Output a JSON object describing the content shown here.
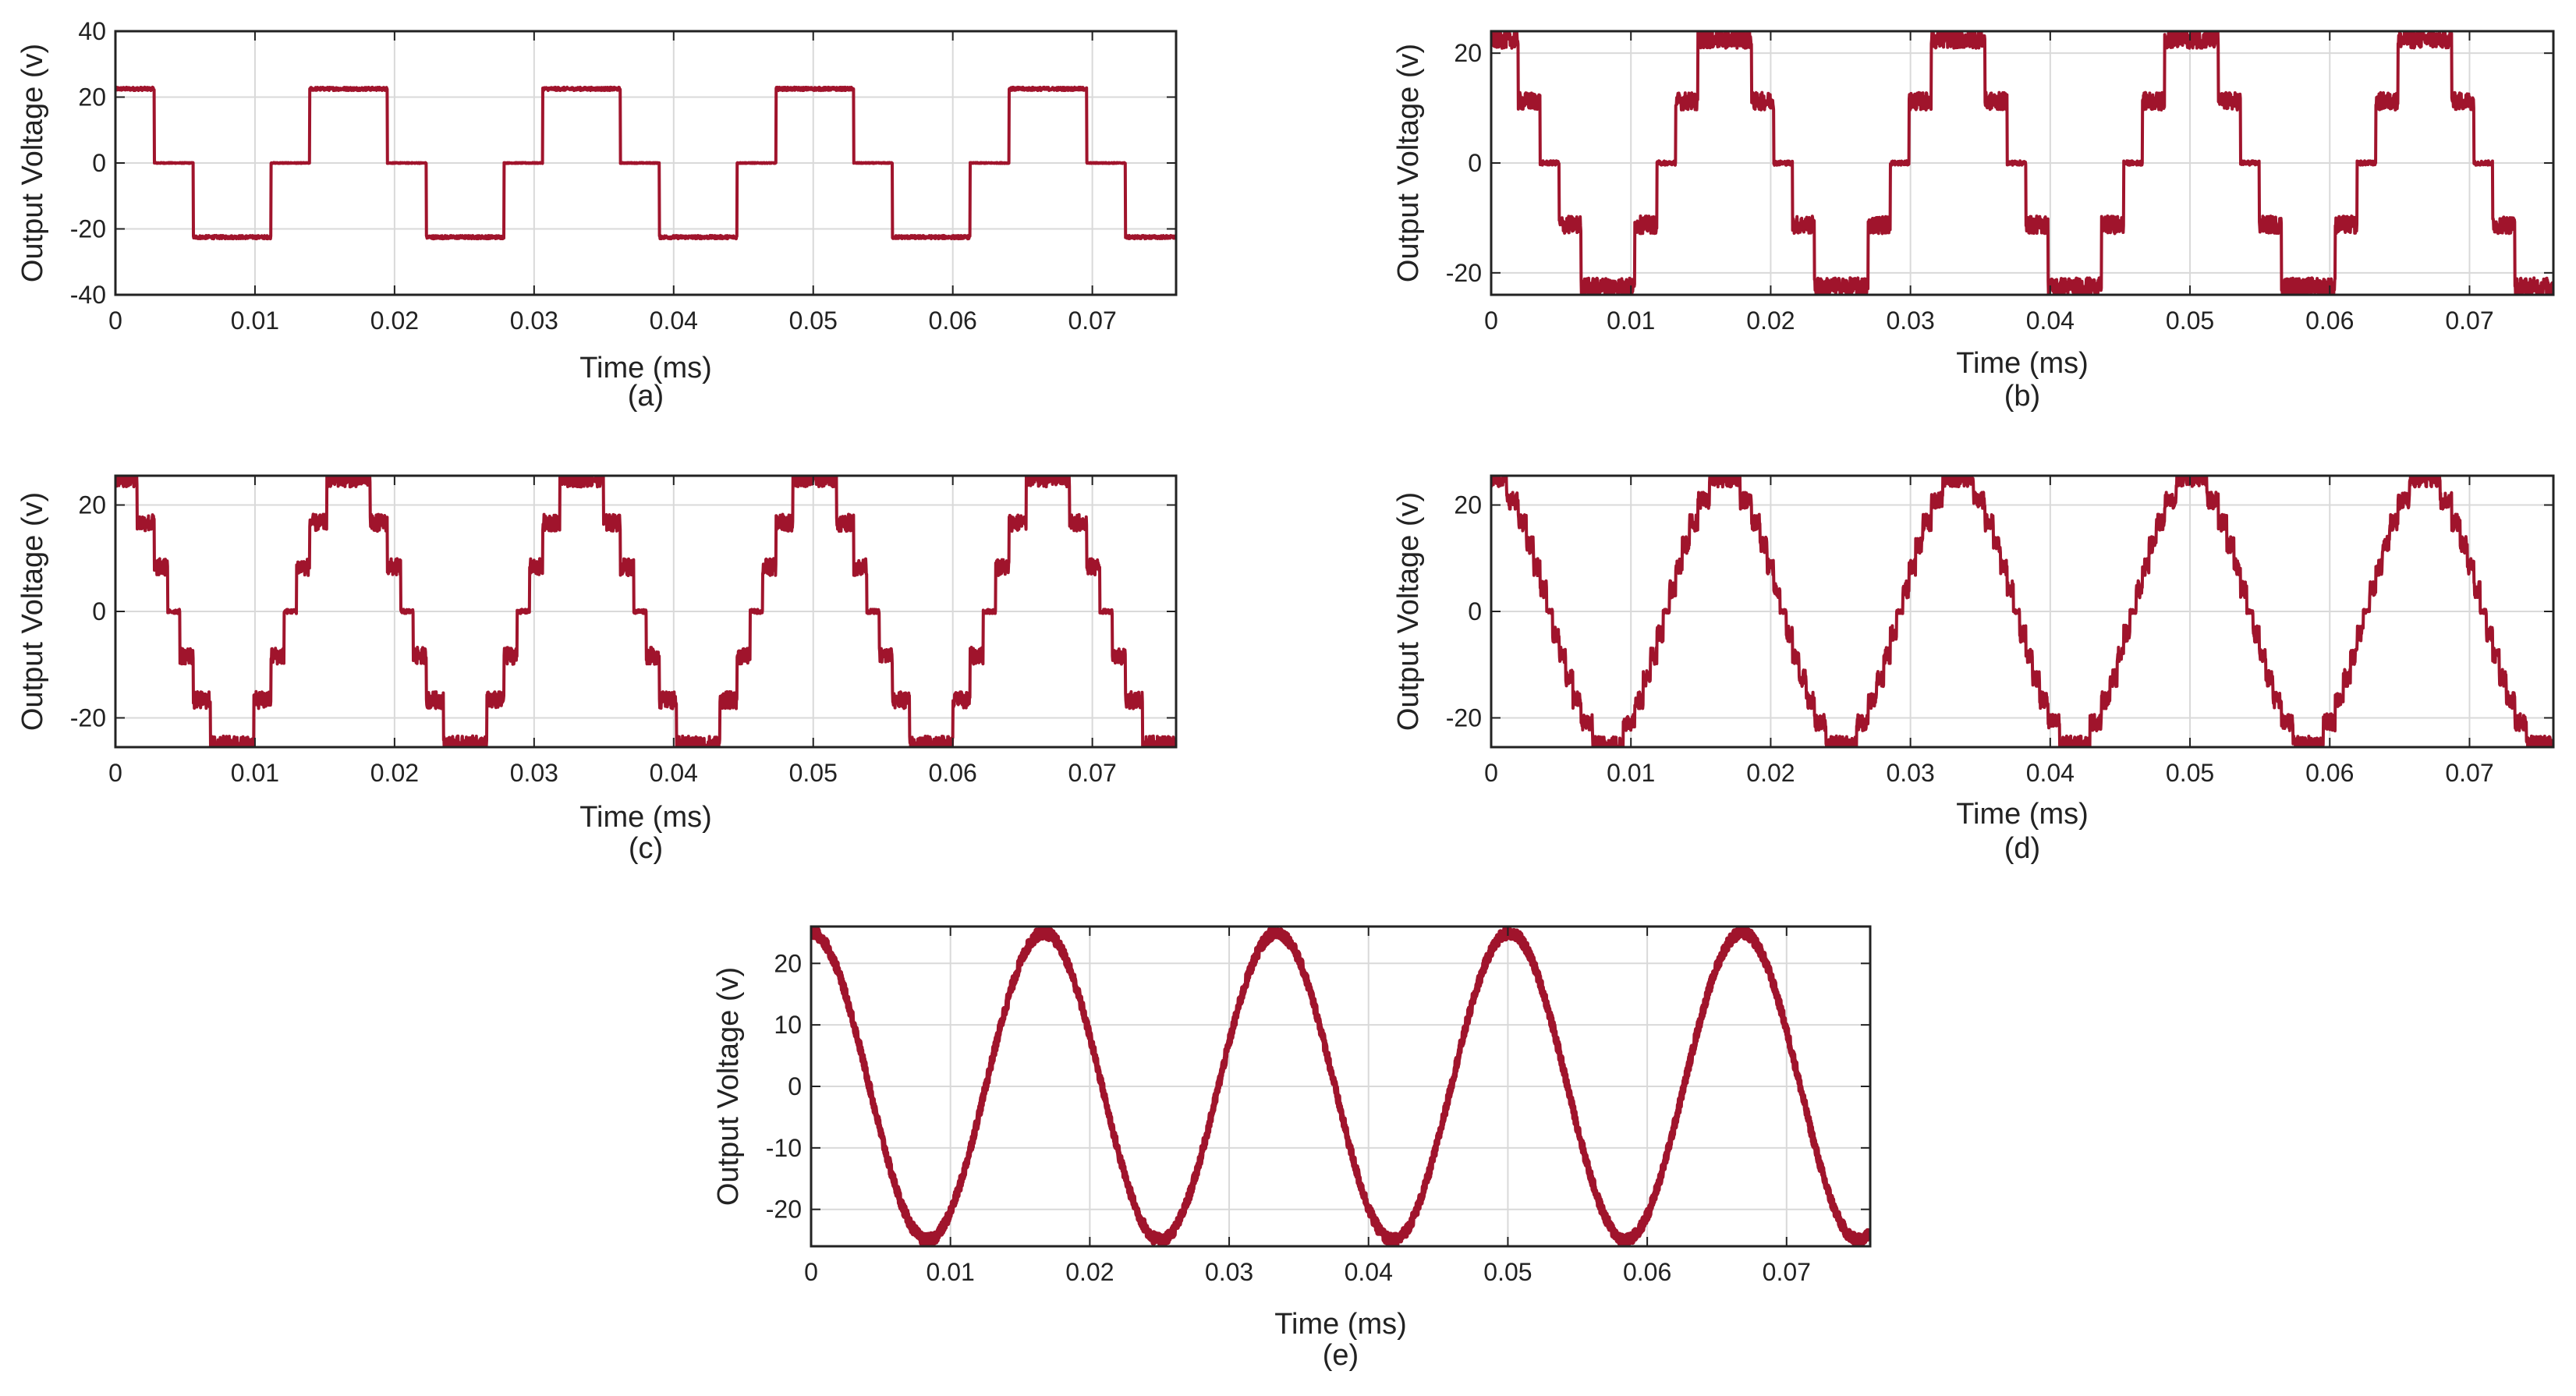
{
  "colors": {
    "trace": "#a0142c",
    "grid": "#d9d9d9",
    "frame": "#222222"
  },
  "chart_data": [
    {
      "type": "line",
      "caption": "(a)",
      "xlabel": "Time (ms)",
      "ylabel": "Output Voltage (v)",
      "xlim": [
        0,
        0.076
      ],
      "ylim": [
        -40,
        40
      ],
      "xticks": [
        0,
        0.01,
        0.02,
        0.03,
        0.04,
        0.05,
        0.06,
        0.07
      ],
      "xtick_labels": [
        "0",
        "0.01",
        "0.02",
        "0.03",
        "0.04",
        "0.05",
        "0.06",
        "0.07"
      ],
      "yticks": [
        -40,
        -20,
        0,
        20,
        40
      ],
      "ytick_labels": [
        "-40",
        "-20",
        "0",
        "20",
        "40"
      ],
      "grid": true,
      "series": [
        {
          "waveform": "staircase",
          "levels": 1,
          "amplitude": 22.5,
          "period": 0.0167,
          "phase": 0.00417,
          "noise": 0.5
        }
      ]
    },
    {
      "type": "line",
      "caption": "(b)",
      "xlabel": "Time (ms)",
      "ylabel": "Output Voltage (v)",
      "xlim": [
        0,
        0.076
      ],
      "ylim": [
        -24,
        24
      ],
      "xticks": [
        0,
        0.01,
        0.02,
        0.03,
        0.04,
        0.05,
        0.06,
        0.07
      ],
      "xtick_labels": [
        "0",
        "0.01",
        "0.02",
        "0.03",
        "0.04",
        "0.05",
        "0.06",
        "0.07"
      ],
      "yticks": [
        -20,
        0,
        20
      ],
      "ytick_labels": [
        "-20",
        "0",
        "20"
      ],
      "grid": true,
      "series": [
        {
          "waveform": "staircase",
          "levels": 2,
          "amplitude": 22.5,
          "period": 0.0167,
          "phase": 0.00417,
          "noise": 1.6
        }
      ]
    },
    {
      "type": "line",
      "caption": "(c)",
      "xlabel": "Time (ms)",
      "ylabel": "Output Voltage (v)",
      "xlim": [
        0,
        0.076
      ],
      "ylim": [
        -25.5,
        25.5
      ],
      "xticks": [
        0,
        0.01,
        0.02,
        0.03,
        0.04,
        0.05,
        0.06,
        0.07
      ],
      "xtick_labels": [
        "0",
        "0.01",
        "0.02",
        "0.03",
        "0.04",
        "0.05",
        "0.06",
        "0.07"
      ],
      "yticks": [
        -20,
        0,
        20
      ],
      "ytick_labels": [
        "-20",
        "0",
        "20"
      ],
      "grid": true,
      "series": [
        {
          "waveform": "staircase",
          "levels": 3,
          "amplitude": 25,
          "period": 0.0167,
          "phase": 0.00417,
          "noise": 1.6
        }
      ]
    },
    {
      "type": "line",
      "caption": "(d)",
      "xlabel": "Time (ms)",
      "ylabel": "Output Voltage (v)",
      "xlim": [
        0,
        0.076
      ],
      "ylim": [
        -25.5,
        25.5
      ],
      "xticks": [
        0,
        0.01,
        0.02,
        0.03,
        0.04,
        0.05,
        0.06,
        0.07
      ],
      "xtick_labels": [
        "0",
        "0.01",
        "0.02",
        "0.03",
        "0.04",
        "0.05",
        "0.06",
        "0.07"
      ],
      "yticks": [
        -20,
        0,
        20
      ],
      "ytick_labels": [
        "-20",
        "0",
        "20"
      ],
      "grid": true,
      "series": [
        {
          "waveform": "staircase",
          "levels": 6,
          "amplitude": 25,
          "period": 0.0167,
          "phase": 0.00417,
          "noise": 1.6
        }
      ]
    },
    {
      "type": "line",
      "caption": "(e)",
      "xlabel": "Time (ms)",
      "ylabel": "Output Voltage (v)",
      "xlim": [
        0,
        0.076
      ],
      "ylim": [
        -26,
        26
      ],
      "xticks": [
        0,
        0.01,
        0.02,
        0.03,
        0.04,
        0.05,
        0.06,
        0.07
      ],
      "xtick_labels": [
        "0",
        "0.01",
        "0.02",
        "0.03",
        "0.04",
        "0.05",
        "0.06",
        "0.07"
      ],
      "yticks": [
        -20,
        -10,
        0,
        10,
        20
      ],
      "ytick_labels": [
        "-20",
        "-10",
        "0",
        "10",
        "20"
      ],
      "grid": true,
      "series": [
        {
          "waveform": "sine",
          "levels": 0,
          "amplitude": 25,
          "period": 0.0167,
          "phase": 0.00417,
          "noise": 0.9
        }
      ]
    }
  ]
}
